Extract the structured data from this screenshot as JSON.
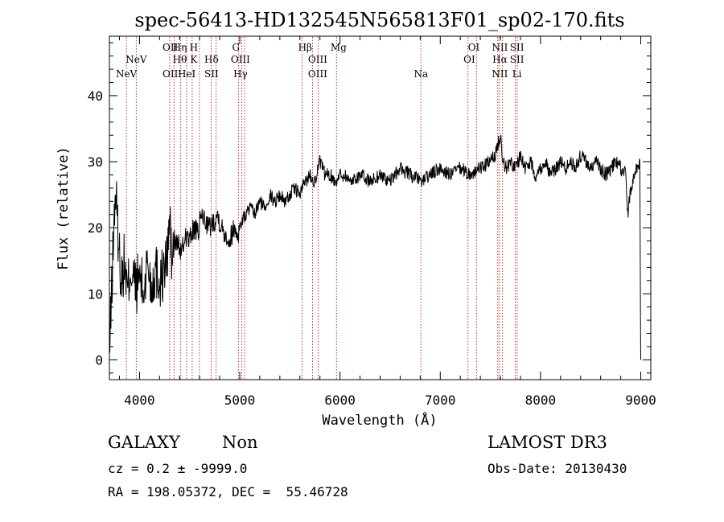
{
  "chart_data": {
    "type": "line",
    "title": "spec-56413-HD132545N565813F01_sp02-170.fits",
    "xlabel": "Wavelength (Å)",
    "ylabel": "Flux (relative)",
    "xlim": [
      3700,
      9100
    ],
    "ylim": [
      -3,
      49
    ],
    "xticks": [
      4000,
      5000,
      6000,
      7000,
      8000,
      9000
    ],
    "xtick_labels": [
      "4000",
      "5000",
      "6000",
      "7000",
      "8000",
      "9000"
    ],
    "yticks": [
      0,
      10,
      20,
      30,
      40
    ],
    "ytick_labels": [
      "0",
      "10",
      "20",
      "30",
      "40"
    ],
    "series": [
      {
        "name": "flux",
        "color": "#000000",
        "x": [
          3700,
          3730,
          3760,
          3790,
          3820,
          3850,
          3880,
          3910,
          3940,
          3970,
          4000,
          4040,
          4080,
          4120,
          4160,
          4200,
          4240,
          4280,
          4300,
          4320,
          4340,
          4380,
          4420,
          4460,
          4500,
          4540,
          4580,
          4620,
          4660,
          4700,
          4740,
          4780,
          4820,
          4860,
          4900,
          4940,
          4980,
          5020,
          5060,
          5100,
          5150,
          5200,
          5250,
          5300,
          5350,
          5400,
          5450,
          5500,
          5550,
          5600,
          5650,
          5700,
          5750,
          5800,
          5850,
          5900,
          5950,
          6000,
          6050,
          6100,
          6200,
          6300,
          6400,
          6500,
          6600,
          6700,
          6800,
          6900,
          7000,
          7100,
          7200,
          7300,
          7400,
          7500,
          7550,
          7580,
          7600,
          7620,
          7650,
          7700,
          7750,
          7800,
          7850,
          7900,
          7950,
          8000,
          8050,
          8100,
          8150,
          8200,
          8250,
          8300,
          8350,
          8400,
          8450,
          8500,
          8550,
          8600,
          8650,
          8700,
          8750,
          8800,
          8850,
          8870,
          8900,
          8950,
          8990,
          9000
        ],
        "y": [
          0,
          14,
          26,
          18,
          12,
          15,
          10,
          14,
          12,
          11,
          13,
          10,
          15,
          11,
          14,
          12,
          13,
          16,
          22,
          15,
          17,
          18,
          16,
          19,
          18,
          20,
          19,
          22,
          21,
          20,
          21,
          22,
          20,
          19,
          18,
          20,
          19,
          21,
          22,
          23,
          22,
          24,
          23,
          25,
          24,
          25,
          24,
          25,
          26,
          25,
          27,
          28,
          27,
          30,
          28,
          28,
          27,
          28,
          28,
          27,
          28,
          27,
          28,
          27,
          29,
          28,
          27,
          28,
          29,
          28,
          29,
          28,
          29,
          30,
          31,
          33,
          34,
          31,
          29,
          30,
          29,
          31,
          29,
          30,
          28,
          29,
          30,
          28,
          29,
          30,
          29,
          30,
          29,
          31,
          30,
          29,
          30,
          29,
          28,
          29,
          30,
          29,
          28,
          22,
          26,
          29,
          30,
          0
        ]
      }
    ],
    "lines": [
      {
        "label": "NeV",
        "x": 3869,
        "row": 3
      },
      {
        "label": "NeV",
        "x": 3968,
        "row": 2
      },
      {
        "label": "OII",
        "x": 4307,
        "row": 1
      },
      {
        "label": "OII",
        "x": 4307,
        "row": 3
      },
      {
        "label": "Hη",
        "x": 4402,
        "row": 1
      },
      {
        "label": "Hθ",
        "x": 4402,
        "row": 2
      },
      {
        "label": "HeI",
        "x": 4471,
        "row": 3
      },
      {
        "label": "H",
        "x": 4541,
        "row": 1
      },
      {
        "label": "K",
        "x": 4541,
        "row": 2
      },
      {
        "label": "Hδ",
        "x": 4718,
        "row": 2
      },
      {
        "label": "SII",
        "x": 4718,
        "row": 3
      },
      {
        "label": "G",
        "x": 4962,
        "row": 1
      },
      {
        "label": "OIII",
        "x": 5007,
        "row": 2
      },
      {
        "label": "Hγ",
        "x": 5007,
        "row": 3
      },
      {
        "label": "Hβ",
        "x": 5652,
        "row": 1
      },
      {
        "label": "OIII",
        "x": 5777,
        "row": 2
      },
      {
        "label": "OIII",
        "x": 5777,
        "row": 3
      },
      {
        "label": "Mg",
        "x": 5985,
        "row": 1
      },
      {
        "label": "Na",
        "x": 6808,
        "row": 3
      },
      {
        "label": "OI",
        "x": 7335,
        "row": 1
      },
      {
        "label": "OI",
        "x": 7290,
        "row": 2
      },
      {
        "label": "NII",
        "x": 7595,
        "row": 1
      },
      {
        "label": "Hα",
        "x": 7595,
        "row": 2
      },
      {
        "label": "NII",
        "x": 7595,
        "row": 3
      },
      {
        "label": "SII",
        "x": 7765,
        "row": 1
      },
      {
        "label": "SII",
        "x": 7765,
        "row": 2
      },
      {
        "label": "Li",
        "x": 7765,
        "row": 3
      }
    ],
    "line_positions": [
      3869,
      3968,
      4301,
      4345,
      4411,
      4470,
      4526,
      4597,
      4715,
      4764,
      4987,
      5021,
      5049,
      5622,
      5726,
      5783,
      5965,
      6808,
      7276,
      7362,
      7573,
      7590,
      7621,
      7749,
      7768
    ],
    "line_color": "#c83232"
  },
  "info": {
    "object_class": "GALAXY",
    "subclass": "Non",
    "survey": "LAMOST DR3",
    "cz": "cz = 0.2 ± -9999.0",
    "obs_date": "Obs-Date: 20130430",
    "ra_dec": "RA = 198.05372, DEC =  55.46728"
  }
}
